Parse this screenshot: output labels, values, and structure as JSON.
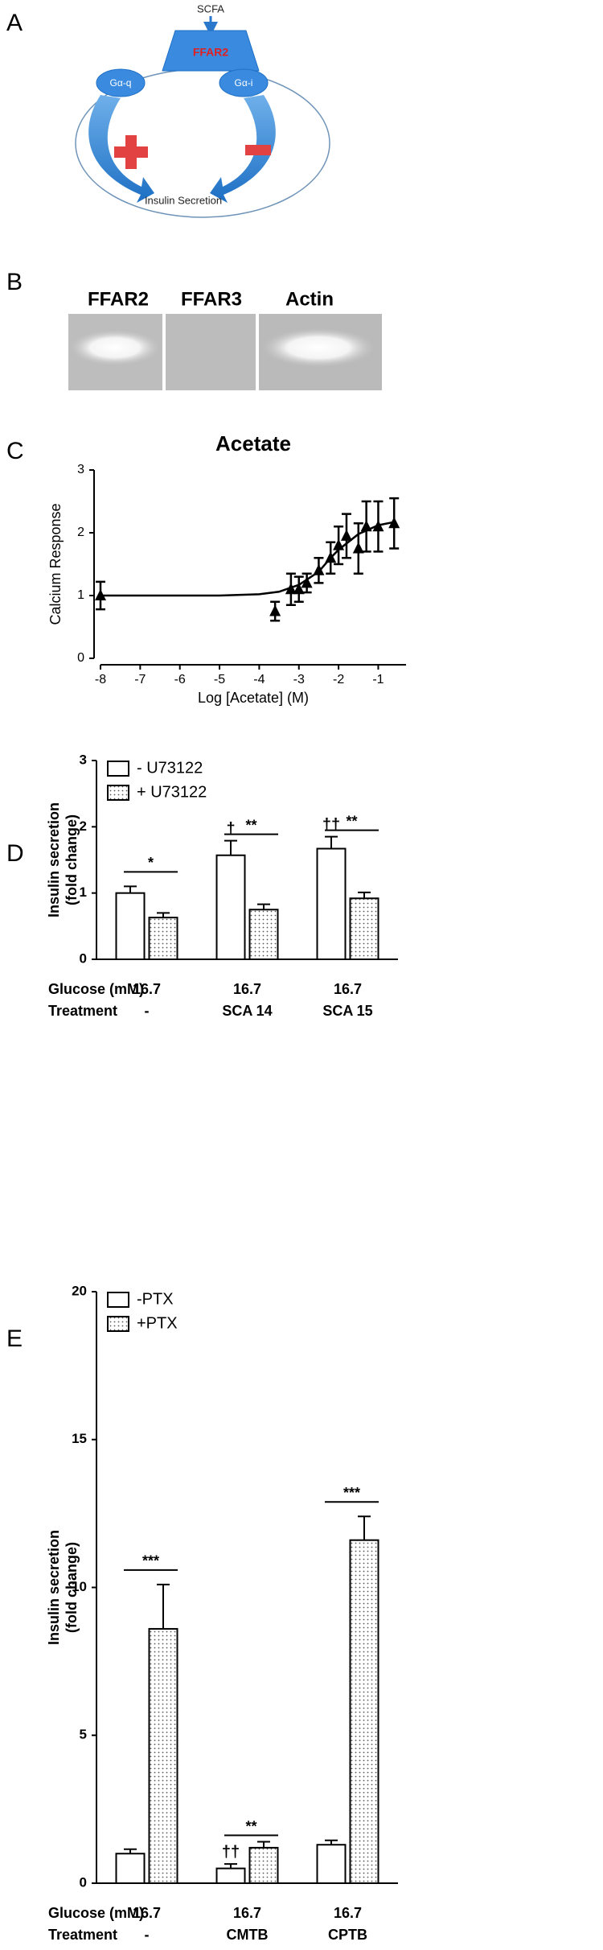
{
  "panel_labels": [
    "A",
    "B",
    "C",
    "D",
    "E"
  ],
  "diagram": {
    "input": "SCFA",
    "receptor": "FFAR2",
    "left_protein": "Gα-q",
    "right_protein": "Gα-i",
    "output": "Insulin Secretion"
  },
  "gel": {
    "lanes": [
      "FFAR2",
      "FFAR3",
      "Actin"
    ]
  },
  "chart_data": [
    {
      "type": "scatter",
      "title": "Acetate",
      "xlabel": "Log [Acetate] (M)",
      "ylabel": "Calcium  Response",
      "x": [
        -8,
        -3.6,
        -3.2,
        -3.0,
        -2.8,
        -2.5,
        -2.2,
        -2.0,
        -1.8,
        -1.5,
        -1.3,
        -1.0,
        -0.6
      ],
      "values": [
        1.0,
        0.75,
        1.1,
        1.1,
        1.2,
        1.4,
        1.6,
        1.8,
        1.95,
        1.75,
        2.1,
        2.1,
        2.15
      ],
      "errors": [
        0.22,
        0.15,
        0.25,
        0.2,
        0.15,
        0.2,
        0.25,
        0.3,
        0.35,
        0.4,
        0.4,
        0.4,
        0.4
      ],
      "color": "#000000",
      "fit": {
        "x": [
          -8,
          -5,
          -4,
          -3.5,
          -3,
          -2.5,
          -2.2,
          -2,
          -1.5,
          -1,
          -0.6
        ],
        "values": [
          1.0,
          1.0,
          1.02,
          1.06,
          1.17,
          1.38,
          1.6,
          1.73,
          1.98,
          2.12,
          2.17
        ]
      },
      "xlim": [
        -8,
        -0.3
      ],
      "ylim": [
        0,
        3
      ],
      "xticks": [
        -8,
        -7,
        -6,
        -5,
        -4,
        -3,
        -2,
        -1
      ],
      "yticks": [
        0,
        1,
        2,
        3
      ]
    },
    {
      "type": "bar",
      "ylabel": [
        "Insulin secretion",
        "(fold change)"
      ],
      "categories": [
        "-",
        "SCA 14",
        "SCA 15"
      ],
      "category_title": "Treatment",
      "glucose": {
        "label": "Glucose (mM)",
        "values": [
          16.7,
          16.7,
          16.7
        ]
      },
      "series": [
        {
          "name": "- U73122",
          "color": "#ffffff",
          "values": [
            1.0,
            1.57,
            1.67
          ],
          "errors": [
            0.1,
            0.22,
            0.18
          ]
        },
        {
          "name": "+ U73122",
          "color": "dotted",
          "values": [
            0.63,
            0.75,
            0.92
          ],
          "errors": [
            0.07,
            0.08,
            0.09
          ]
        }
      ],
      "significance": [
        "*",
        "**",
        "**"
      ],
      "daggers": [
        null,
        "†",
        "††"
      ],
      "ylim": [
        0,
        3
      ],
      "yticks": [
        0,
        1,
        2,
        3
      ]
    },
    {
      "type": "bar",
      "ylabel": [
        "Insulin secretion",
        "(fold change)"
      ],
      "categories": [
        "-",
        "CMTB",
        "CPTB"
      ],
      "category_title": "Treatment",
      "glucose": {
        "label": "Glucose (mM)",
        "values": [
          16.7,
          16.7,
          16.7
        ]
      },
      "series": [
        {
          "name": "-PTX",
          "color": "#ffffff",
          "values": [
            1.0,
            0.5,
            1.3
          ],
          "errors": [
            0.15,
            0.15,
            0.15
          ]
        },
        {
          "name": "+PTX",
          "color": "dotted",
          "values": [
            8.6,
            1.2,
            11.6
          ],
          "errors": [
            1.5,
            0.2,
            0.8
          ]
        }
      ],
      "significance": [
        "***",
        "**",
        "***"
      ],
      "daggers": [
        null,
        "††",
        null
      ],
      "ylim": [
        0,
        20
      ],
      "yticks": [
        0,
        5,
        10,
        15,
        20
      ]
    }
  ]
}
